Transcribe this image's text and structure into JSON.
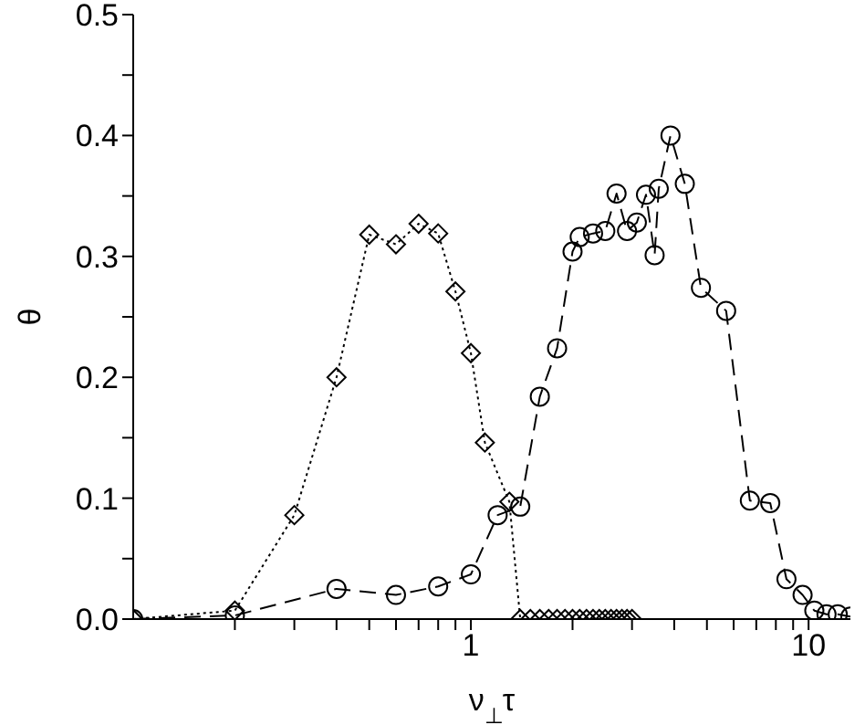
{
  "chart_data": {
    "type": "line",
    "xlabel": "ν$_{⊥}$τ",
    "ylabel": "θ",
    "log": "x",
    "xlim": [
      0.1,
      13.3
    ],
    "xticks": [
      {
        "value": 0.2,
        "label": null
      },
      {
        "value": 0.3,
        "label": null
      },
      {
        "value": 0.4,
        "label": null
      },
      {
        "value": 0.5,
        "label": null
      },
      {
        "value": 0.6,
        "label": null
      },
      {
        "value": 0.7,
        "label": null
      },
      {
        "value": 0.8,
        "label": null
      },
      {
        "value": 0.9,
        "label": null
      },
      1,
      {
        "value": 2,
        "label": null
      },
      {
        "value": 3,
        "label": null
      },
      {
        "value": 4,
        "label": null
      },
      {
        "value": 5,
        "label": null
      },
      {
        "value": 6,
        "label": null
      },
      {
        "value": 7,
        "label": null
      },
      {
        "value": 8,
        "label": null
      },
      {
        "value": 9,
        "label": null
      },
      10
    ],
    "ylim": [
      0,
      0.5
    ],
    "yticks": [
      {
        "value": 0,
        "label": "0.0"
      },
      {
        "value": 0.05,
        "label": null
      },
      0.1,
      {
        "value": 0.15,
        "label": null
      },
      0.2,
      {
        "value": 0.25,
        "label": null
      },
      0.3,
      {
        "value": 0.35,
        "label": null
      },
      0.4,
      {
        "value": 0.45,
        "label": null
      },
      0.5
    ],
    "grid": false,
    "legend": false,
    "series": [
      {
        "color": "#000000",
        "marker": "diamond",
        "line_style": "dotted",
        "x": [
          0.1,
          0.2,
          0.3,
          0.4,
          0.5,
          0.6,
          0.7,
          0.8,
          0.9,
          1.0,
          1.1,
          1.3,
          1.4,
          1.5,
          1.6,
          1.7,
          1.8,
          1.9,
          2.0,
          2.1,
          2.2,
          2.3,
          2.4,
          2.5,
          2.6,
          2.7,
          2.8,
          2.9,
          3.0
        ],
        "values": [
          0,
          0.007,
          0.086,
          0.2,
          0.318,
          0.31,
          0.327,
          0.319,
          0.271,
          0.22,
          0.146,
          0.097,
          0,
          0,
          0,
          0,
          0,
          0,
          0,
          0,
          0,
          0,
          0,
          0,
          0,
          0,
          0,
          0,
          0
        ]
      },
      {
        "color": "#000000",
        "marker": "circle",
        "line_style": "dashed",
        "x": [
          0.1,
          0.2,
          0.4,
          0.6,
          0.8,
          1.0,
          1.2,
          1.4,
          1.6,
          1.8,
          2.0,
          2.1,
          2.3,
          2.5,
          2.7,
          2.9,
          3.1,
          3.3,
          3.5,
          3.6,
          3.9,
          4.3,
          4.8,
          5.7,
          6.7,
          7.7,
          8.6,
          9.6,
          10.4,
          11.3,
          12.2,
          13.3
        ],
        "values": [
          0,
          0.003,
          0.025,
          0.02,
          0.027,
          0.037,
          0.086,
          0.093,
          0.184,
          0.224,
          0.304,
          0.316,
          0.319,
          0.321,
          0.352,
          0.321,
          0.328,
          0.351,
          0.301,
          0.356,
          0.4,
          0.36,
          0.274,
          0.255,
          0.098,
          0.096,
          0.033,
          0.02,
          0.007,
          0.004,
          0.004,
          0.002
        ]
      }
    ]
  }
}
